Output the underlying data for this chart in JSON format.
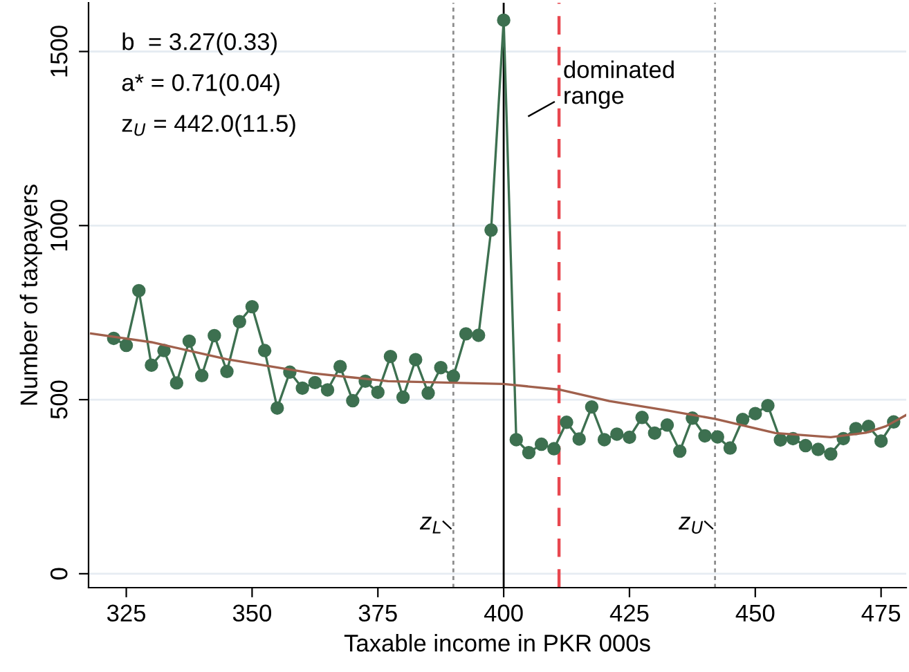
{
  "chart_data": {
    "type": "line",
    "xlabel": "Taxable income in PKR 000s",
    "ylabel": "Number of taxpayers",
    "xlim": [
      317.5,
      480
    ],
    "xticks": [
      325,
      350,
      375,
      400,
      425,
      450,
      475
    ],
    "ylim": [
      -40,
      1640
    ],
    "yticks": [
      0,
      500,
      1000,
      1500
    ],
    "grid": "y",
    "line_style": "solid",
    "series": [
      {
        "color": "#3d7050",
        "marker": "circle",
        "x": [
          322.5,
          325,
          327.5,
          330,
          332.5,
          335,
          337.5,
          340,
          342.5,
          345,
          347.5,
          350,
          352.5,
          355,
          357.5,
          360,
          362.5,
          365,
          367.5,
          370,
          372.5,
          375,
          377.5,
          380,
          382.5,
          385,
          387.5,
          390,
          392.5,
          395,
          397.5,
          400,
          402.5,
          405,
          407.5,
          410,
          412.5,
          415,
          417.5,
          420,
          422.5,
          425,
          427.5,
          430,
          432.5,
          435,
          437.5,
          440,
          442.5,
          445,
          447.5,
          450,
          452.5,
          455,
          457.5,
          460,
          462.5,
          465,
          467.5,
          470,
          472.5,
          475,
          477.5
        ],
        "values": [
          676,
          656,
          813,
          599,
          641,
          548,
          668,
          569,
          684,
          581,
          724,
          767,
          641,
          476,
          579,
          533,
          549,
          528,
          595,
          497,
          553,
          521,
          624,
          507,
          615,
          519,
          592,
          567,
          689,
          685,
          987,
          1590,
          385,
          348,
          372,
          359,
          435,
          387,
          479,
          385,
          401,
          392,
          449,
          404,
          427,
          352,
          447,
          396,
          393,
          361,
          443,
          460,
          483,
          384,
          388,
          368,
          357,
          344,
          388,
          417,
          423,
          381,
          436
        ]
      },
      {
        "color": "#a0604c",
        "marker": "none",
        "x": [
          318,
          330,
          345,
          362,
          377,
          400,
          411,
          421,
          432,
          442,
          454,
          465,
          472,
          476,
          480
        ],
        "values": [
          690,
          665,
          616,
          576,
          553,
          545,
          529,
          496,
          470,
          445,
          404,
          392,
          405,
          424,
          456
        ]
      }
    ],
    "ref_lines": [
      {
        "axis": "x",
        "value": 390,
        "label": "z$_{L}$",
        "color": "#8c8c8c",
        "line_style": "dotted"
      },
      {
        "axis": "x",
        "value": 400,
        "color": "#000000",
        "line_style": "solid"
      },
      {
        "axis": "x",
        "value": 411,
        "label": "dominated range",
        "color": "#e8474f",
        "line_style": "dashed"
      },
      {
        "axis": "x",
        "value": 442,
        "label": "z$_{U}$",
        "color": "#8c8c8c",
        "line_style": "dotted"
      }
    ],
    "annotations": [
      "b  = 3.27(0.33)",
      "a* = 0.71(0.04)",
      "z$_{U}$ = 442.0(11.5)"
    ]
  }
}
